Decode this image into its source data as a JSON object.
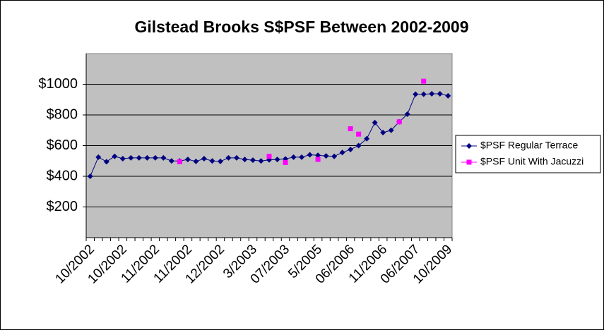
{
  "chart_data": {
    "type": "line",
    "title": "Gilstead Brooks S$PSF Between 2002-2009",
    "categories": [
      "10/2002",
      null,
      null,
      null,
      "10/2002",
      null,
      null,
      null,
      "11/2002",
      null,
      null,
      null,
      "11/2002",
      null,
      null,
      null,
      "12/2002",
      null,
      null,
      null,
      "3/2003",
      null,
      null,
      null,
      "07/2003",
      null,
      null,
      null,
      "5/2005",
      null,
      null,
      null,
      "06/2006",
      null,
      null,
      null,
      "11/2006",
      null,
      null,
      null,
      "06/2007",
      null,
      null,
      null,
      "10/2009"
    ],
    "series": [
      {
        "name": "$PSF Regular Terrace",
        "color": "#000080",
        "marker": "diamond",
        "values": [
          400,
          525,
          495,
          530,
          515,
          520,
          520,
          520,
          520,
          520,
          500,
          500,
          510,
          497,
          515,
          500,
          497,
          520,
          520,
          510,
          505,
          500,
          507,
          510,
          513,
          525,
          525,
          540,
          537,
          533,
          530,
          555,
          575,
          600,
          645,
          750,
          685,
          700,
          755,
          805,
          935,
          935,
          938,
          938,
          925
        ]
      },
      {
        "name": "$PSF Unit With Jacuzzi",
        "color": "#ff00ff",
        "marker": "square",
        "values": [
          null,
          null,
          null,
          null,
          null,
          null,
          null,
          null,
          null,
          null,
          null,
          495,
          null,
          null,
          null,
          null,
          null,
          null,
          null,
          null,
          null,
          null,
          530,
          null,
          490,
          null,
          null,
          null,
          510,
          null,
          null,
          null,
          710,
          675,
          null,
          null,
          null,
          null,
          755,
          null,
          null,
          1020,
          null,
          null,
          null
        ]
      }
    ],
    "ylim": [
      0,
      1200
    ],
    "yticks": [
      {
        "value": 200,
        "label": "$200"
      },
      {
        "value": 400,
        "label": "$400"
      },
      {
        "value": 600,
        "label": "$600"
      },
      {
        "value": 800,
        "label": "$800"
      },
      {
        "value": 1000,
        "label": "$1000"
      }
    ],
    "grid": true,
    "legend": "right",
    "plot_background": "#c0c0c0"
  }
}
